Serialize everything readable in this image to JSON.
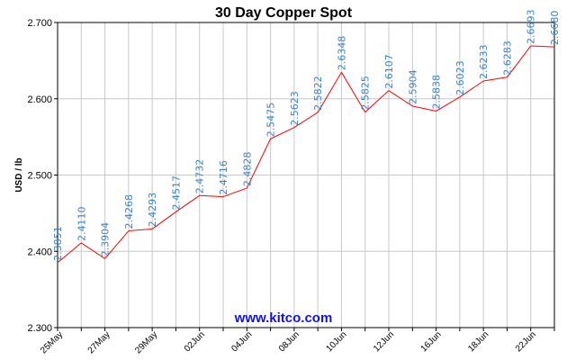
{
  "chart_data": {
    "type": "line",
    "title": "30 Day Copper Spot",
    "xlabel": "",
    "ylabel": "USD / lb",
    "ylim": [
      2.3,
      2.7
    ],
    "yticks": [
      "2.300",
      "2.400",
      "2.500",
      "2.600",
      "2.700"
    ],
    "xtick_labels": [
      "25May",
      "27May",
      "29May",
      "02Jun",
      "04Jun",
      "08Jun",
      "10Jun",
      "12Jun",
      "16Jun",
      "18Jun",
      "22Jun"
    ],
    "series": [
      {
        "values": [
          2.3851,
          2.411,
          2.3904,
          2.4268,
          2.4293,
          2.4517,
          2.4732,
          2.4716,
          2.4828,
          2.5475,
          2.5623,
          2.5822,
          2.6348,
          2.5825,
          2.6107,
          2.5904,
          2.5838,
          2.6023,
          2.6233,
          2.6283,
          2.6693,
          2.668
        ],
        "labels": [
          "2.3851",
          "2.4110",
          "2.3904",
          "2.4268",
          "2.4293",
          "2.4517",
          "2.4732",
          "2.4716",
          "2.4828",
          "2.5475",
          "2.5623",
          "2.5822",
          "2.6348",
          "2.5825",
          "2.6107",
          "2.5904",
          "2.5838",
          "2.6023",
          "2.6233",
          "2.6283",
          "2.6693",
          "2.6680"
        ]
      }
    ],
    "grid": true,
    "colors": {
      "line": "#ff0000",
      "data_label": "#3a82c8",
      "grid": "#c8c8c8"
    }
  },
  "watermark": "www.kitco.com"
}
